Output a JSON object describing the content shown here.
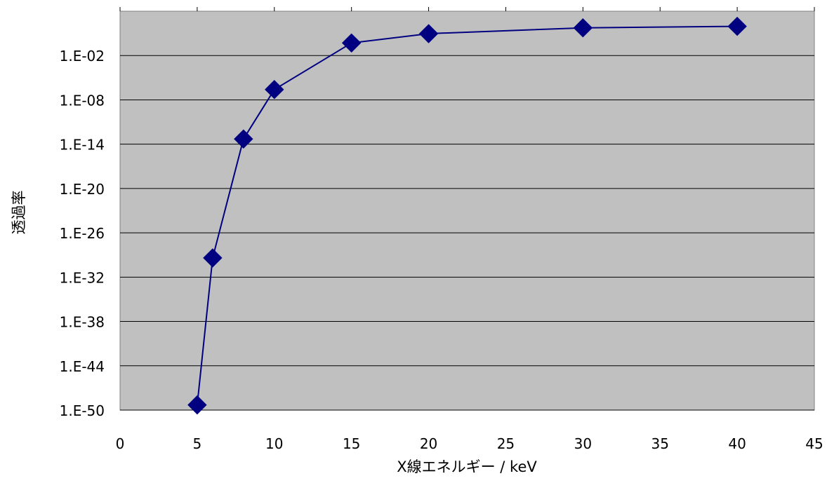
{
  "chart_data": {
    "type": "line",
    "title": "",
    "xlabel": "X線エネルギー / keV",
    "ylabel": "透過率",
    "xlim": [
      0,
      45
    ],
    "ylim_exponent": [
      -50,
      4
    ],
    "y_scale": "log",
    "x_ticks": [
      "0",
      "5",
      "10",
      "15",
      "20",
      "25",
      "30",
      "35",
      "40",
      "45"
    ],
    "y_ticks": [
      {
        "exp": -50,
        "label": "1.E-50"
      },
      {
        "exp": -44,
        "label": "1.E-44"
      },
      {
        "exp": -38,
        "label": "1.E-38"
      },
      {
        "exp": -32,
        "label": "1.E-32"
      },
      {
        "exp": -26,
        "label": "1.E-26"
      },
      {
        "exp": -20,
        "label": "1.E-20"
      },
      {
        "exp": -14,
        "label": "1.E-14"
      },
      {
        "exp": -8,
        "label": "1.E-08"
      },
      {
        "exp": -2,
        "label": "1.E-02"
      }
    ],
    "grid": true,
    "legend": "none",
    "series": [
      {
        "x": [
          5,
          6,
          8,
          10,
          15,
          20,
          30,
          40
        ],
        "y": [
          "1e-49.3",
          "1e-29.4",
          "1e-13.3",
          "1e-6.6",
          "1e-0.3",
          "1e0.96",
          "1e1.75",
          "1e1.95"
        ],
        "y_exponent": [
          -49.3,
          -29.4,
          -13.3,
          -6.6,
          -0.3,
          0.96,
          1.75,
          1.95
        ],
        "color": "#000080",
        "marker": "diamond"
      }
    ]
  },
  "colors": {
    "plot_background": "#c0c0c0",
    "gridline": "#000000",
    "series_line": "#000080",
    "marker_fill": "#000080"
  }
}
